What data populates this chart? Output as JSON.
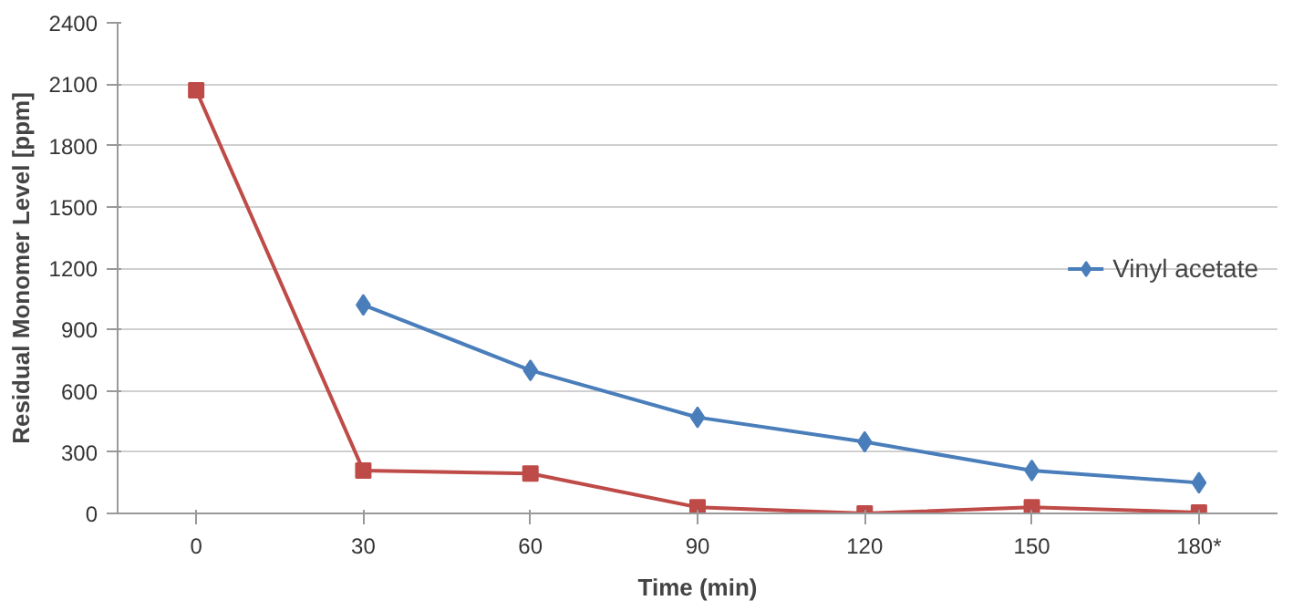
{
  "chart_data": {
    "type": "line",
    "xlabel": "Time (min)",
    "ylabel": "Residual Monomer Level [ppm]",
    "categories": [
      "0",
      "30",
      "60",
      "90",
      "120",
      "150",
      "180*"
    ],
    "ylim": [
      0,
      2400
    ],
    "yticks": [
      0,
      300,
      600,
      900,
      1200,
      1500,
      1800,
      2100,
      2400
    ],
    "grid": "y",
    "legend": "right",
    "series": [
      {
        "name": "Vinyl acetate",
        "color": "#4a7ebb",
        "marker": "diamond",
        "values": [
          null,
          1020,
          700,
          470,
          350,
          210,
          150
        ]
      },
      {
        "color": "#be4b48",
        "marker": "square",
        "values": [
          2070,
          210,
          195,
          30,
          0,
          30,
          5
        ]
      }
    ]
  }
}
